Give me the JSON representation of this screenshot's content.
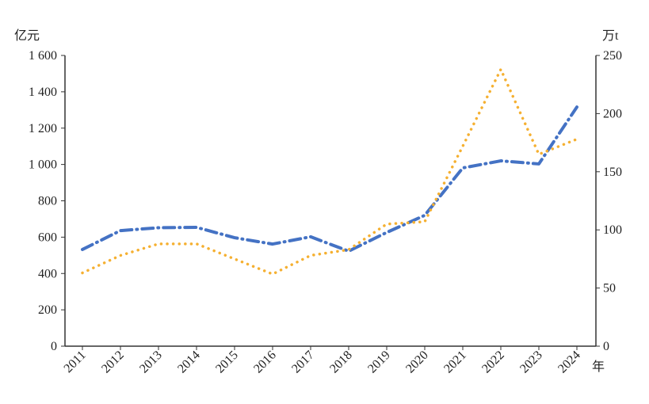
{
  "chart_data": {
    "type": "line",
    "categories": [
      "2011",
      "2012",
      "2013",
      "2014",
      "2015",
      "2016",
      "2017",
      "2018",
      "2019",
      "2020",
      "2021",
      "2022",
      "2023",
      "2024"
    ],
    "xlabel": "年",
    "ylabel_left": "亿元",
    "ylabel_right": "万t",
    "ylim_left": [
      0,
      1600
    ],
    "ylim_right": [
      0,
      250
    ],
    "yticks_left": [
      "0",
      "200",
      "400",
      "600",
      "800",
      "1 000",
      "1 200",
      "1 400",
      "1 600"
    ],
    "yticks_right": [
      "0",
      "50",
      "100",
      "150",
      "200",
      "250"
    ],
    "series": [
      {
        "name": "blue dash-dot series",
        "axis": "left",
        "color": "#4472c4",
        "style": "dash-dot",
        "values": [
          532,
          636,
          652,
          654,
          597,
          562,
          602,
          523,
          626,
          720,
          981,
          1020,
          1003,
          1316
        ]
      },
      {
        "name": "orange dotted series",
        "axis": "right",
        "color": "#f5b031",
        "style": "dotted",
        "values": [
          63,
          78,
          88,
          88,
          75,
          62,
          78,
          83,
          105,
          107,
          172,
          238,
          165,
          178
        ]
      }
    ],
    "grid": false
  }
}
